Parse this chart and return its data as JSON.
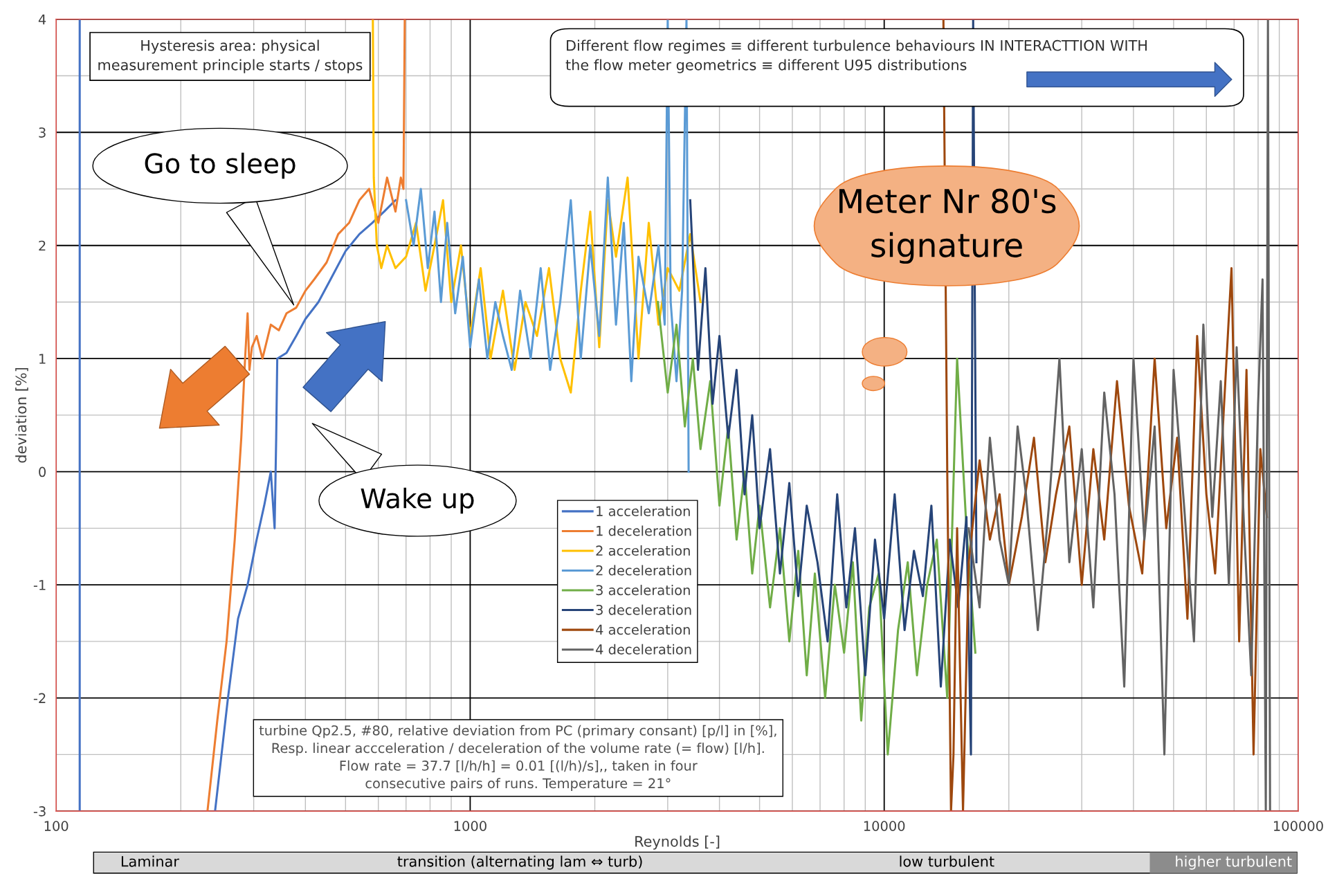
{
  "chart_data": {
    "type": "line",
    "xlabel": "Reynolds [-]",
    "ylabel": "deviation [%]",
    "log": "x",
    "xlim": [
      100,
      100000
    ],
    "xticks": [
      100,
      1000,
      10000,
      100000
    ],
    "ylim": [
      -3,
      4
    ],
    "yticks": [
      -3,
      -2,
      -1,
      0,
      1,
      2,
      3,
      4
    ],
    "grid": true,
    "legend": "center",
    "marker": "none",
    "line_style": "solid",
    "series": [
      {
        "name": "1 acceleration",
        "color": "#4472c4",
        "x": [
          114,
          114,
          180,
          242,
          260,
          275,
          290,
          305,
          318,
          330,
          337,
          340,
          342,
          360,
          380,
          400,
          430,
          460,
          500,
          540,
          580,
          620,
          660
        ],
        "values": [
          4,
          -3,
          null,
          -3,
          -2.0,
          -1.3,
          -1.0,
          -0.6,
          -0.3,
          0.0,
          -0.5,
          0.3,
          1.0,
          1.05,
          1.2,
          1.35,
          1.5,
          1.7,
          1.95,
          2.1,
          2.2,
          2.3,
          2.4
        ]
      },
      {
        "name": "1 deceleration",
        "color": "#ed7d31",
        "x": [
          232,
          245,
          258,
          270,
          280,
          286,
          290,
          293,
          297,
          305,
          315,
          330,
          345,
          360,
          380,
          400,
          420,
          450,
          480,
          510,
          540,
          570,
          600,
          630,
          660,
          680,
          690,
          695
        ],
        "values": [
          -3,
          -2.2,
          -1.5,
          -0.6,
          0.3,
          1.0,
          1.4,
          0.9,
          1.1,
          1.2,
          1.0,
          1.3,
          1.25,
          1.4,
          1.45,
          1.6,
          1.7,
          1.85,
          2.1,
          2.2,
          2.4,
          2.5,
          2.2,
          2.6,
          2.3,
          2.6,
          2.5,
          4
        ]
      },
      {
        "name": "2 acceleration",
        "color": "#ffc000",
        "x": [
          582,
          585,
          595,
          610,
          630,
          660,
          700,
          740,
          780,
          820,
          860,
          900,
          950,
          1000,
          1060,
          1120,
          1200,
          1280,
          1360,
          1450,
          1550,
          1650,
          1750,
          1850,
          1950,
          2050,
          2150,
          2250,
          2400,
          2550,
          2700,
          2850,
          3000,
          3200,
          3400,
          3600
        ],
        "values": [
          4,
          2.6,
          2.0,
          1.8,
          2.0,
          1.8,
          1.9,
          2.2,
          1.6,
          2.0,
          2.4,
          1.5,
          2.0,
          1.2,
          1.8,
          1.0,
          1.6,
          0.9,
          1.5,
          1.2,
          1.8,
          1.0,
          0.7,
          1.6,
          2.3,
          1.1,
          2.4,
          1.9,
          2.6,
          1.0,
          2.2,
          1.3,
          1.8,
          1.6,
          2.1,
          1.5
        ]
      },
      {
        "name": "2 deceleration",
        "color": "#5b9bd5",
        "x": [
          700,
          730,
          760,
          790,
          820,
          850,
          880,
          920,
          960,
          1000,
          1050,
          1100,
          1150,
          1200,
          1260,
          1320,
          1400,
          1480,
          1560,
          1650,
          1750,
          1850,
          1950,
          2050,
          2150,
          2250,
          2350,
          2450,
          2550,
          2700,
          2850,
          2950,
          3000,
          3050,
          3150,
          3250,
          3330,
          3370
        ],
        "values": [
          2.4,
          2.0,
          2.5,
          1.8,
          2.3,
          1.5,
          2.2,
          1.4,
          1.9,
          1.1,
          1.7,
          1.0,
          1.5,
          1.2,
          0.9,
          1.6,
          1.0,
          1.8,
          0.9,
          1.5,
          2.4,
          1.0,
          2.0,
          1.2,
          2.6,
          1.3,
          2.2,
          0.8,
          1.9,
          1.4,
          2.0,
          1.3,
          4,
          1.5,
          0.8,
          1.6,
          4,
          0
        ]
      },
      {
        "name": "3 acceleration",
        "color": "#70ad47",
        "x": [
          2840,
          3000,
          3150,
          3300,
          3450,
          3600,
          3800,
          4000,
          4200,
          4400,
          4600,
          4800,
          5000,
          5300,
          5600,
          5900,
          6200,
          6500,
          6800,
          7200,
          7600,
          8000,
          8400,
          8800,
          9200,
          9700,
          10200,
          10800,
          11400,
          12000,
          12700,
          13400,
          14200,
          15000,
          15800,
          16600
        ],
        "values": [
          1.5,
          0.7,
          1.3,
          0.4,
          1.0,
          0.2,
          0.8,
          -0.3,
          0.4,
          -0.6,
          0.0,
          -0.9,
          -0.3,
          -1.2,
          -0.5,
          -1.5,
          -0.7,
          -1.8,
          -0.9,
          -2.0,
          -1.0,
          -1.6,
          -0.8,
          -2.2,
          -1.2,
          -0.9,
          -2.5,
          -1.4,
          -0.8,
          -1.8,
          -1.0,
          -0.6,
          -2.0,
          1.0,
          -0.5,
          -1.6
        ]
      },
      {
        "name": "3 deceleration",
        "color": "#264478",
        "x": [
          3400,
          3550,
          3700,
          3850,
          4000,
          4200,
          4400,
          4600,
          4800,
          5000,
          5300,
          5600,
          5900,
          6200,
          6500,
          6900,
          7300,
          7700,
          8100,
          8500,
          9000,
          9500,
          10000,
          10600,
          11200,
          11800,
          12400,
          13000,
          13700,
          14400,
          15100,
          15800,
          16200,
          16400,
          16700
        ],
        "values": [
          2.4,
          0.9,
          1.8,
          0.6,
          1.2,
          0.3,
          0.9,
          -0.2,
          0.5,
          -0.5,
          0.2,
          -0.9,
          -0.1,
          -1.1,
          -0.3,
          -0.8,
          -1.5,
          -0.2,
          -1.2,
          -0.5,
          -1.8,
          -0.6,
          -1.3,
          -0.2,
          -1.4,
          -0.7,
          -1.1,
          -0.3,
          -1.9,
          -0.6,
          -1.2,
          -0.4,
          -2.5,
          4,
          -0.8
        ]
      },
      {
        "name": "4 acceleration",
        "color": "#9e480e",
        "x": [
          13900,
          14200,
          14500,
          14700,
          15000,
          15500,
          16000,
          17000,
          18000,
          19000,
          20000,
          21500,
          23000,
          24500,
          26000,
          28000,
          30000,
          32000,
          34000,
          36500,
          39000,
          42000,
          45000,
          48000,
          51000,
          54000,
          57000,
          60000,
          63000,
          66000,
          69000,
          72000,
          75000,
          78000,
          81000,
          84000
        ],
        "values": [
          4,
          0,
          -3,
          -2.5,
          -0.5,
          -3,
          -0.8,
          0.1,
          -0.6,
          -0.2,
          -1.0,
          -0.4,
          0.3,
          -0.8,
          -0.2,
          0.4,
          -1.0,
          0.2,
          -0.6,
          0.8,
          -0.3,
          -0.9,
          1.0,
          -0.5,
          0.3,
          -1.3,
          1.2,
          -0.2,
          -0.9,
          0.5,
          1.8,
          -1.5,
          0.9,
          -2.5,
          0.2,
          -0.4
        ]
      },
      {
        "name": "4 deceleration",
        "color": "#636363",
        "x": [
          16000,
          17000,
          18000,
          19000,
          20000,
          21000,
          22000,
          23500,
          25000,
          26500,
          28000,
          30000,
          32000,
          34000,
          36000,
          38000,
          40000,
          42500,
          45000,
          47500,
          50000,
          53000,
          56000,
          59000,
          62000,
          65000,
          68000,
          71000,
          74000,
          77000,
          80000,
          82000,
          83500,
          84500,
          85500
        ],
        "values": [
          -0.5,
          -1.2,
          0.3,
          -0.6,
          -1.0,
          0.4,
          -0.2,
          -1.4,
          -0.3,
          1.0,
          -0.8,
          0.2,
          -1.2,
          0.7,
          -0.2,
          -1.9,
          1.0,
          -0.6,
          0.4,
          -2.5,
          0.9,
          -0.3,
          -1.5,
          1.3,
          -0.4,
          0.8,
          -1.0,
          1.1,
          -0.5,
          -1.8,
          0.6,
          1.7,
          -3,
          4,
          -3
        ]
      }
    ],
    "annotations": [
      "Hysteresis area: physical\nmeasurement principle starts / stops",
      "Different flow regimes ≡ different turbulence behaviours IN INTERACTTION WITH\nthe flow meter geometrics ≡ different U95 distributions",
      "Go to sleep",
      "Wake up",
      "Meter Nr 80's\nsignature",
      "turbine Qp2.5, #80, relative deviation from PC (primary consant) [p/l] in [%],\nResp. linear accceleration / deceleration of the volume rate (= flow) [l/h].\nFlow rate = 37.7 [l/h/h] = 0.01 [(l/h)/s],, taken in four\nconsecutive pairs of runs. Temperature = 21°",
      "Laminar",
      "transition (alternating lam ⇔ turb)",
      "low turbulent",
      "higher turbulent"
    ]
  }
}
